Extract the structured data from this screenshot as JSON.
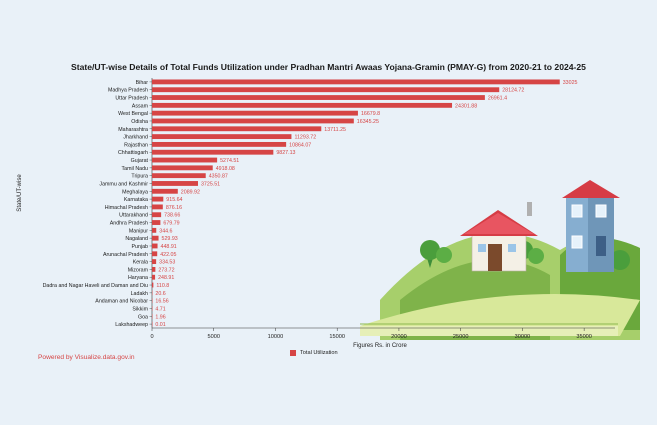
{
  "chart_data": {
    "type": "bar",
    "orientation": "horizontal",
    "title": "State/UT-wise Details of Total Funds Utilization under Pradhan Mantri Awaas Yojana-Gramin (PMAY-G) from 2020-21 to 2024-25",
    "xlabel": "Figures Rs. in Crore",
    "ylabel": "State/UT-wise",
    "xlim": [
      0,
      37500
    ],
    "xticks": [
      0,
      5000,
      10000,
      15000,
      20000,
      25000,
      30000,
      35000
    ],
    "grid": false,
    "legend_position": "bottom",
    "color": "#d64545",
    "categories": [
      "Bihar",
      "Madhya Pradesh",
      "Uttar Pradesh",
      "Assam",
      "West Bengal",
      "Odisha",
      "Maharashtra",
      "Jharkhand",
      "Rajasthan",
      "Chhattisgarh",
      "Gujarat",
      "Tamil Nadu",
      "Tripura",
      "Jammu and Kashmir",
      "Meghalaya",
      "Karnataka",
      "Himachal Pradesh",
      "Uttarakhand",
      "Andhra Pradesh",
      "Manipur",
      "Nagaland",
      "Punjab",
      "Arunachal Pradesh",
      "Kerala",
      "Mizoram",
      "Haryana",
      "Dadra and Nagar Haveli and Daman and Diu",
      "Ladakh",
      "Andaman and Nicobar",
      "Sikkim",
      "Goa",
      "Lakshadweep"
    ],
    "series": [
      {
        "name": "Total Utilization",
        "values": [
          33025,
          28124.72,
          26961.4,
          24301.88,
          16679.8,
          16345.25,
          13711.25,
          11293.72,
          10864.07,
          9827.13,
          5274.51,
          4918.08,
          4350.87,
          3725.51,
          2089.92,
          915.64,
          876.16,
          738.66,
          679.79,
          344.6,
          529.93,
          448.91,
          422.05,
          334.53,
          273.72,
          248.91,
          110.8,
          20.6,
          16.56,
          4.71,
          1.96,
          0.01
        ],
        "labels": [
          "33025",
          "28124.72",
          "26961.4",
          "24301.88",
          "16679.8",
          "16345.25",
          "13711.25",
          "11293.72",
          "10864.07",
          "9827.13",
          "5274.51",
          "4918.08",
          "4350.87",
          "3725.51",
          "2089.92",
          "915.64",
          "876.16",
          "738.66",
          "679.79",
          "344.6",
          "529.93",
          "448.91",
          "422.05",
          "334.53",
          "273.72",
          "248.91",
          "110.8",
          "20.6",
          "16.56",
          "4.71",
          "1.96",
          "0.01"
        ]
      }
    ]
  },
  "footer": {
    "credit": "Powered by Visualize.data.gov.in"
  },
  "colors": {
    "bar": "#d64545",
    "background": "#e9f1f8",
    "credit": "#d64545"
  }
}
